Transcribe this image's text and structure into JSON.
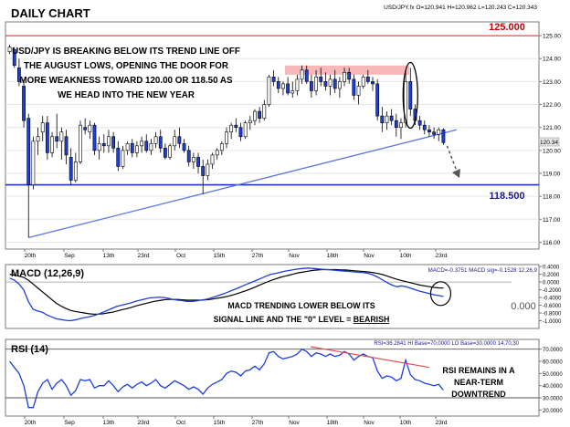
{
  "header": {
    "title": "DAILY CHART",
    "quote": "USD/JPY.fx O=120.941 H=120.962 L=120.243 C=120.343"
  },
  "colors": {
    "up_candle": "#ffffff",
    "down_candle": "#1f3fd6",
    "level_line": "#2030c8",
    "resistance_line": "#e05050",
    "resistance_zone": "#f4a6a6",
    "trendline": "#5a78e0",
    "macd_line": "#1f3fd6",
    "signal_line": "#000000",
    "rsi_line": "#1f3fd6",
    "rsi_trend": "#e05050"
  },
  "annotations": {
    "main": "USD/JPY IS BREAKING BELOW ITS TREND LINE OFF THE AUGUST LOWS, OPENING THE DOOR FOR MORE WEAKNESS TOWARD 120.00 OR 118.50 AS WE HEAD INTO THE NEW YEAR",
    "level_high": "125.000",
    "level_low": "118.500",
    "macd_zero": "0.000",
    "macd_line1": "MACD TRENDING LOWER BELOW ITS",
    "macd_line2a": "SIGNAL LINE AND THE \"0\" LEVEL = ",
    "macd_line2b": "BEARISH",
    "rsi_line1": "RSI REMAINS IN A",
    "rsi_line2": "NEAR-TERM",
    "rsi_line3": "DOWNTREND"
  },
  "chart_data": [
    {
      "type": "candlestick",
      "title": "DAILY CHART",
      "symbol": "USD/JPY.fx",
      "last": {
        "open": 120.941,
        "high": 120.962,
        "low": 120.243,
        "close": 120.343
      },
      "price_label": "120.34",
      "ylim": [
        115.7,
        125.6
      ],
      "y_ticks": [
        "125.00",
        "124.00",
        "123.00",
        "122.00",
        "121.00",
        "120.00",
        "119.00",
        "118.00",
        "117.00",
        "116.00"
      ],
      "x_ticks": [
        "20th",
        "Sep",
        "13th",
        "23rd",
        "Oct",
        "15th",
        "27th",
        "Nov",
        "18th",
        "Nov",
        "10th",
        "23rd"
      ],
      "levels": [
        125.0,
        118.5
      ],
      "resistance_zone": [
        123.3,
        123.7
      ],
      "trendline": {
        "from_index": 4,
        "from": 116.2,
        "to_index": 94,
        "to": 120.9
      },
      "candles": [
        [
          124.3,
          124.6,
          124.2,
          124.5
        ],
        [
          124.4,
          124.5,
          123.6,
          123.7
        ],
        [
          123.6,
          124.0,
          122.8,
          123.0
        ],
        [
          122.8,
          123.1,
          121.0,
          121.3
        ],
        [
          121.4,
          121.6,
          116.2,
          118.5
        ],
        [
          118.5,
          120.6,
          118.3,
          120.4
        ],
        [
          120.4,
          121.0,
          119.8,
          120.6
        ],
        [
          120.8,
          121.5,
          120.4,
          121.2
        ],
        [
          121.2,
          121.5,
          119.6,
          119.9
        ],
        [
          119.9,
          120.8,
          119.7,
          120.6
        ],
        [
          120.6,
          121.6,
          120.1,
          120.4
        ],
        [
          120.4,
          121.0,
          119.6,
          120.8
        ],
        [
          120.6,
          120.9,
          119.4,
          119.8
        ],
        [
          119.7,
          120.1,
          118.5,
          118.7
        ],
        [
          118.7,
          119.9,
          118.6,
          119.5
        ],
        [
          119.5,
          121.3,
          119.4,
          121.1
        ],
        [
          121.0,
          121.4,
          120.7,
          120.9
        ],
        [
          120.8,
          121.3,
          120.5,
          121.1
        ],
        [
          121.1,
          121.2,
          119.8,
          120.0
        ],
        [
          120.0,
          120.6,
          119.6,
          120.3
        ],
        [
          120.3,
          120.7,
          119.9,
          120.2
        ],
        [
          120.2,
          120.9,
          119.9,
          120.6
        ],
        [
          120.6,
          120.8,
          119.9,
          120.1
        ],
        [
          120.1,
          120.4,
          119.1,
          119.3
        ],
        [
          119.3,
          120.2,
          119.2,
          120.0
        ],
        [
          120.0,
          120.4,
          119.8,
          120.3
        ],
        [
          120.3,
          120.5,
          119.7,
          119.9
        ],
        [
          119.9,
          120.4,
          119.7,
          120.2
        ],
        [
          120.2,
          120.6,
          119.9,
          120.4
        ],
        [
          120.4,
          120.7,
          119.9,
          120.0
        ],
        [
          120.0,
          120.5,
          119.8,
          120.3
        ],
        [
          120.3,
          120.8,
          120.1,
          120.6
        ],
        [
          120.6,
          120.9,
          119.9,
          120.1
        ],
        [
          120.1,
          120.3,
          119.6,
          119.7
        ],
        [
          119.7,
          120.3,
          119.6,
          120.2
        ],
        [
          120.2,
          120.9,
          120.0,
          120.6
        ],
        [
          120.6,
          121.0,
          120.1,
          120.3
        ],
        [
          120.3,
          120.5,
          119.9,
          120.0
        ],
        [
          120.0,
          120.2,
          119.3,
          119.5
        ],
        [
          119.5,
          119.9,
          119.2,
          119.7
        ],
        [
          119.7,
          119.9,
          119.0,
          119.3
        ],
        [
          119.3,
          119.6,
          118.1,
          118.9
        ],
        [
          118.9,
          119.6,
          118.7,
          119.4
        ],
        [
          119.4,
          119.9,
          119.2,
          119.8
        ],
        [
          119.8,
          120.1,
          119.6,
          120.0
        ],
        [
          120.0,
          120.4,
          119.8,
          120.3
        ],
        [
          120.3,
          121.0,
          120.1,
          120.8
        ],
        [
          120.8,
          121.2,
          120.5,
          121.1
        ],
        [
          121.1,
          121.4,
          120.8,
          121.0
        ],
        [
          121.0,
          121.2,
          120.4,
          120.6
        ],
        [
          120.6,
          121.3,
          120.5,
          121.2
        ],
        [
          121.2,
          121.5,
          120.9,
          121.3
        ],
        [
          121.3,
          121.8,
          121.1,
          121.7
        ],
        [
          121.7,
          121.9,
          121.2,
          121.4
        ],
        [
          121.4,
          122.2,
          121.3,
          122.0
        ],
        [
          122.0,
          123.3,
          121.9,
          123.2
        ],
        [
          123.2,
          123.5,
          122.8,
          123.0
        ],
        [
          123.0,
          123.2,
          122.5,
          122.7
        ],
        [
          122.7,
          123.0,
          122.4,
          122.9
        ],
        [
          122.9,
          123.2,
          122.4,
          122.5
        ],
        [
          122.5,
          123.0,
          122.3,
          122.6
        ],
        [
          122.6,
          123.3,
          122.4,
          123.1
        ],
        [
          123.1,
          123.7,
          122.9,
          123.5
        ],
        [
          123.5,
          123.7,
          122.9,
          123.0
        ],
        [
          123.0,
          123.3,
          122.3,
          122.6
        ],
        [
          122.6,
          123.5,
          122.4,
          123.2
        ],
        [
          123.2,
          123.6,
          122.8,
          123.0
        ],
        [
          123.0,
          123.4,
          122.6,
          122.8
        ],
        [
          122.8,
          123.3,
          122.4,
          123.1
        ],
        [
          123.1,
          123.5,
          122.5,
          122.7
        ],
        [
          122.7,
          123.2,
          122.3,
          123.0
        ],
        [
          123.0,
          123.6,
          122.8,
          123.4
        ],
        [
          123.4,
          123.6,
          122.9,
          123.1
        ],
        [
          123.1,
          123.3,
          122.2,
          122.4
        ],
        [
          122.4,
          123.0,
          122.0,
          122.8
        ],
        [
          122.8,
          123.3,
          122.7,
          123.2
        ],
        [
          123.2,
          123.5,
          122.9,
          123.0
        ],
        [
          123.0,
          123.2,
          122.6,
          122.9
        ],
        [
          122.9,
          123.1,
          121.3,
          121.5
        ],
        [
          121.5,
          121.9,
          120.8,
          121.2
        ],
        [
          121.2,
          121.7,
          120.9,
          121.5
        ],
        [
          121.5,
          121.8,
          121.1,
          121.3
        ],
        [
          121.3,
          121.6,
          120.6,
          121.0
        ],
        [
          121.0,
          121.4,
          120.5,
          121.2
        ],
        [
          121.2,
          123.5,
          121.0,
          123.0
        ],
        [
          123.0,
          123.6,
          121.5,
          121.8
        ],
        [
          121.8,
          122.0,
          121.1,
          121.3
        ],
        [
          121.3,
          121.5,
          120.9,
          121.1
        ],
        [
          121.1,
          121.3,
          120.7,
          120.9
        ],
        [
          120.9,
          121.1,
          120.6,
          120.8
        ],
        [
          120.8,
          121.0,
          120.5,
          120.7
        ],
        [
          120.7,
          121.0,
          120.4,
          120.9
        ],
        [
          120.9,
          120.96,
          120.24,
          120.34
        ]
      ]
    },
    {
      "type": "line",
      "title": "MACD (12,26,9)",
      "legend": "MACD=-0.3751 MACD sig=-0.1528 12,26,9",
      "ylim": [
        -1.2,
        0.45
      ],
      "y_ticks": [
        "0.4000",
        "0.2000",
        "0.0000",
        "-0.2000",
        "-0.4000",
        "-0.6000",
        "-0.8000",
        "-1.0000"
      ],
      "series": [
        {
          "name": "MACD",
          "values": [
            0.1,
            0.05,
            -0.05,
            -0.2,
            -0.5,
            -0.7,
            -0.75,
            -0.78,
            -0.85,
            -0.9,
            -0.95,
            -0.97,
            -0.99,
            -1.0,
            -0.98,
            -0.95,
            -0.92,
            -0.9,
            -0.87,
            -0.83,
            -0.78,
            -0.73,
            -0.68,
            -0.63,
            -0.6,
            -0.57,
            -0.54,
            -0.5,
            -0.47,
            -0.44,
            -0.41,
            -0.4,
            -0.39,
            -0.4,
            -0.42,
            -0.45,
            -0.47,
            -0.48,
            -0.5,
            -0.5,
            -0.49,
            -0.47,
            -0.45,
            -0.42,
            -0.38,
            -0.34,
            -0.3,
            -0.25,
            -0.2,
            -0.15,
            -0.1,
            -0.05,
            0.0,
            0.05,
            0.1,
            0.15,
            0.2,
            0.22,
            0.25,
            0.28,
            0.3,
            0.32,
            0.34,
            0.35,
            0.36,
            0.35,
            0.34,
            0.33,
            0.32,
            0.31,
            0.3,
            0.29,
            0.28,
            0.27,
            0.26,
            0.25,
            0.24,
            0.22,
            0.18,
            0.12,
            0.05,
            -0.02,
            -0.08,
            -0.12,
            -0.1,
            -0.12,
            -0.16,
            -0.2,
            -0.24,
            -0.27,
            -0.3,
            -0.33,
            -0.35,
            -0.3751
          ]
        },
        {
          "name": "Signal",
          "values": [
            0.2,
            0.18,
            0.15,
            0.12,
            0.05,
            -0.05,
            -0.15,
            -0.25,
            -0.35,
            -0.45,
            -0.55,
            -0.62,
            -0.68,
            -0.73,
            -0.76,
            -0.78,
            -0.8,
            -0.82,
            -0.83,
            -0.83,
            -0.82,
            -0.8,
            -0.78,
            -0.75,
            -0.72,
            -0.69,
            -0.66,
            -0.62,
            -0.59,
            -0.56,
            -0.53,
            -0.5,
            -0.48,
            -0.46,
            -0.45,
            -0.45,
            -0.45,
            -0.46,
            -0.47,
            -0.47,
            -0.47,
            -0.47,
            -0.46,
            -0.45,
            -0.43,
            -0.41,
            -0.39,
            -0.36,
            -0.33,
            -0.29,
            -0.25,
            -0.21,
            -0.16,
            -0.11,
            -0.06,
            -0.01,
            0.04,
            0.08,
            0.12,
            0.15,
            0.18,
            0.21,
            0.24,
            0.26,
            0.28,
            0.3,
            0.31,
            0.32,
            0.32,
            0.32,
            0.32,
            0.31,
            0.31,
            0.3,
            0.29,
            0.28,
            0.27,
            0.26,
            0.24,
            0.22,
            0.19,
            0.15,
            0.11,
            0.07,
            0.04,
            0.01,
            -0.02,
            -0.05,
            -0.08,
            -0.1,
            -0.12,
            -0.14,
            -0.15,
            -0.1528
          ]
        }
      ]
    },
    {
      "type": "line",
      "title": "RSI (14)",
      "legend": "RSI=36.2841 HI Base=70.0000 LO Base=30.0000 14,70,30",
      "ylim": [
        15,
        78
      ],
      "y_ticks": [
        "70.0000",
        "60.0000",
        "50.0000",
        "40.0000",
        "30.0000",
        "20.0000"
      ],
      "levels": [
        70,
        30
      ],
      "x_ticks": [
        "20th",
        "Sep",
        "13th",
        "23rd",
        "Oct",
        "15th",
        "27th",
        "Nov",
        "18th",
        "Nov",
        "10th",
        "23rd"
      ],
      "series": [
        {
          "name": "RSI",
          "values": [
            60,
            55,
            50,
            40,
            22,
            22,
            35,
            42,
            45,
            37,
            42,
            45,
            40,
            32,
            36,
            45,
            44,
            45,
            38,
            40,
            40,
            44,
            40,
            35,
            39,
            41,
            38,
            41,
            43,
            40,
            42,
            45,
            40,
            38,
            41,
            44,
            42,
            40,
            37,
            39,
            37,
            33,
            38,
            41,
            43,
            45,
            50,
            52,
            51,
            48,
            52,
            53,
            56,
            53,
            58,
            67,
            68,
            64,
            62,
            63,
            64,
            66,
            70,
            68,
            64,
            67,
            66,
            64,
            66,
            64,
            65,
            68,
            66,
            61,
            64,
            66,
            64,
            63,
            52,
            46,
            48,
            47,
            44,
            46,
            61,
            49,
            45,
            44,
            42,
            41,
            40,
            41,
            36.28
          ]
        }
      ]
    }
  ]
}
